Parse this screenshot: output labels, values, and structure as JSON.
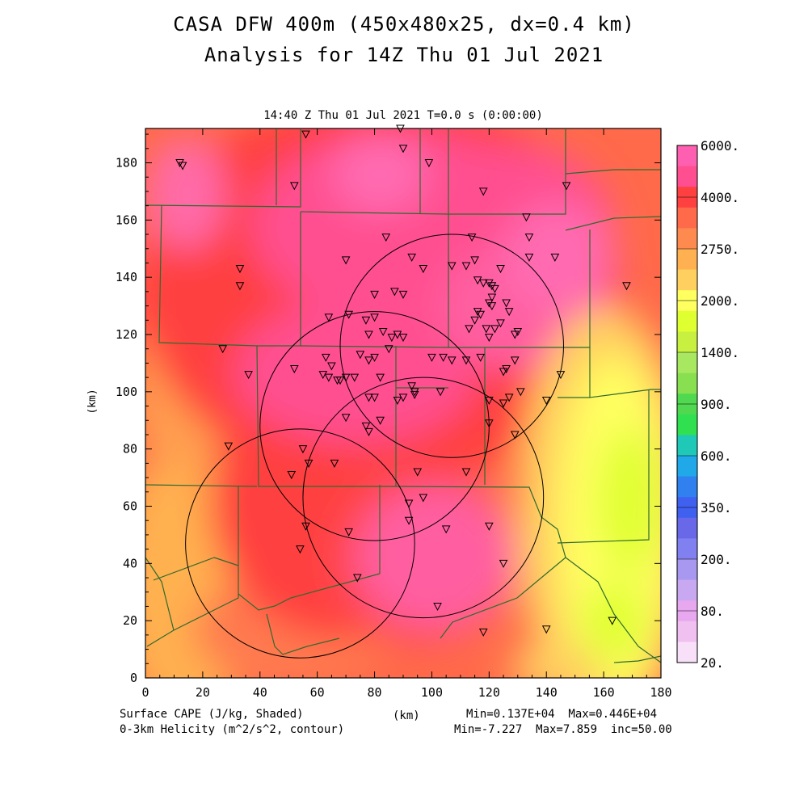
{
  "title_line1": "CASA DFW 400m (450x480x25, dx=0.4 km)",
  "title_line2": "Analysis for 14Z Thu 01 Jul 2021",
  "plot_subtitle": "14:40 Z Thu 01 Jul 2021    T=0.0 s (0:00:00)",
  "x_axis": {
    "label": "(km)",
    "ticks": [
      "0",
      "20",
      "40",
      "60",
      "80",
      "100",
      "120",
      "140",
      "160",
      "180"
    ]
  },
  "y_axis": {
    "label": "(km)",
    "ticks": [
      "0",
      "20",
      "40",
      "60",
      "80",
      "100",
      "120",
      "140",
      "160",
      "180"
    ]
  },
  "colorbar": {
    "labels": [
      "6000.",
      "4000.",
      "2750.",
      "2000.",
      "1400.",
      "900.",
      "600.",
      "350.",
      "200.",
      "80.",
      "20."
    ],
    "colors": [
      "#ff5fb0",
      "#ff4f90",
      "#ff4040",
      "#ff6a4a",
      "#ff8a50",
      "#ffb050",
      "#ffd060",
      "#ffff60",
      "#e0ff30",
      "#c8f040",
      "#a8e860",
      "#88e050",
      "#50d850",
      "#30e050",
      "#20c8b8",
      "#20a8e8",
      "#3080f0",
      "#4060f0",
      "#6868e8",
      "#8080f0",
      "#a898f0",
      "#c8a8f0",
      "#e8a8f0",
      "#f0c0f0",
      "#f8e0f8"
    ]
  },
  "footer": {
    "left1": "Surface CAPE (J/kg, Shaded)",
    "left2": "0-3km Helicity (m^2/s^2, contour)",
    "center": "(km)",
    "right1": "Min=0.137E+04  Max=0.446E+04",
    "right2": "Min=-7.227  Max=7.859  inc=50.00"
  },
  "map": {
    "domain_km": [
      180,
      192
    ],
    "radar_circles_km": [
      {
        "x": 107,
        "y": 116,
        "r": 39
      },
      {
        "x": 80,
        "y": 88,
        "r": 40
      },
      {
        "x": 97,
        "y": 63,
        "r": 42
      },
      {
        "x": 54,
        "y": 47,
        "r": 40
      }
    ],
    "stations_km": [
      [
        12,
        180
      ],
      [
        13,
        179
      ],
      [
        56,
        190
      ],
      [
        89,
        192
      ],
      [
        90,
        185
      ],
      [
        99,
        180
      ],
      [
        52,
        172
      ],
      [
        118,
        170
      ],
      [
        147,
        172
      ],
      [
        133,
        161
      ],
      [
        134,
        154
      ],
      [
        114,
        154
      ],
      [
        84,
        154
      ],
      [
        134,
        147
      ],
      [
        143,
        147
      ],
      [
        93,
        147
      ],
      [
        70,
        146
      ],
      [
        115,
        146
      ],
      [
        124,
        143
      ],
      [
        112,
        144
      ],
      [
        107,
        144
      ],
      [
        33,
        143
      ],
      [
        97,
        143
      ],
      [
        116,
        139
      ],
      [
        118,
        138
      ],
      [
        120,
        138
      ],
      [
        121,
        137
      ],
      [
        122,
        136
      ],
      [
        168,
        137
      ],
      [
        33,
        137
      ],
      [
        87,
        135
      ],
      [
        90,
        134
      ],
      [
        80,
        134
      ],
      [
        121,
        133
      ],
      [
        120,
        131
      ],
      [
        121,
        130
      ],
      [
        126,
        131
      ],
      [
        116,
        128
      ],
      [
        117,
        127
      ],
      [
        127,
        128
      ],
      [
        64,
        126
      ],
      [
        71,
        127
      ],
      [
        80,
        126
      ],
      [
        77,
        125
      ],
      [
        115,
        125
      ],
      [
        124,
        124
      ],
      [
        119,
        122
      ],
      [
        113,
        122
      ],
      [
        122,
        122
      ],
      [
        130,
        121
      ],
      [
        129,
        120
      ],
      [
        83,
        121
      ],
      [
        88,
        120
      ],
      [
        78,
        120
      ],
      [
        86,
        119
      ],
      [
        90,
        119
      ],
      [
        120,
        119
      ],
      [
        27,
        115
      ],
      [
        85,
        115
      ],
      [
        75,
        113
      ],
      [
        80,
        112
      ],
      [
        63,
        112
      ],
      [
        117,
        112
      ],
      [
        112,
        111
      ],
      [
        107,
        111
      ],
      [
        104,
        112
      ],
      [
        100,
        112
      ],
      [
        78,
        111
      ],
      [
        129,
        111
      ],
      [
        65,
        109
      ],
      [
        52,
        108
      ],
      [
        126,
        108
      ],
      [
        125,
        107
      ],
      [
        36,
        106
      ],
      [
        62,
        106
      ],
      [
        64,
        105
      ],
      [
        67,
        104
      ],
      [
        70,
        105
      ],
      [
        82,
        105
      ],
      [
        73,
        105
      ],
      [
        68,
        104
      ],
      [
        145,
        106
      ],
      [
        93,
        102
      ],
      [
        94,
        100
      ],
      [
        78,
        98
      ],
      [
        94,
        99
      ],
      [
        90,
        98
      ],
      [
        80,
        98
      ],
      [
        88,
        97
      ],
      [
        127,
        98
      ],
      [
        120,
        97
      ],
      [
        140,
        97
      ],
      [
        103,
        100
      ],
      [
        131,
        100
      ],
      [
        125,
        96
      ],
      [
        70,
        91
      ],
      [
        82,
        90
      ],
      [
        77,
        88
      ],
      [
        120,
        89
      ],
      [
        78,
        86
      ],
      [
        129,
        85
      ],
      [
        29,
        81
      ],
      [
        55,
        80
      ],
      [
        66,
        75
      ],
      [
        57,
        75
      ],
      [
        112,
        72
      ],
      [
        95,
        72
      ],
      [
        51,
        71
      ],
      [
        97,
        63
      ],
      [
        92,
        61
      ],
      [
        56,
        53
      ],
      [
        71,
        51
      ],
      [
        105,
        52
      ],
      [
        120,
        53
      ],
      [
        92,
        55
      ],
      [
        54,
        45
      ],
      [
        125,
        40
      ],
      [
        74,
        35
      ],
      [
        102,
        25
      ],
      [
        140,
        17
      ],
      [
        163,
        20
      ],
      [
        118,
        16
      ]
    ]
  }
}
